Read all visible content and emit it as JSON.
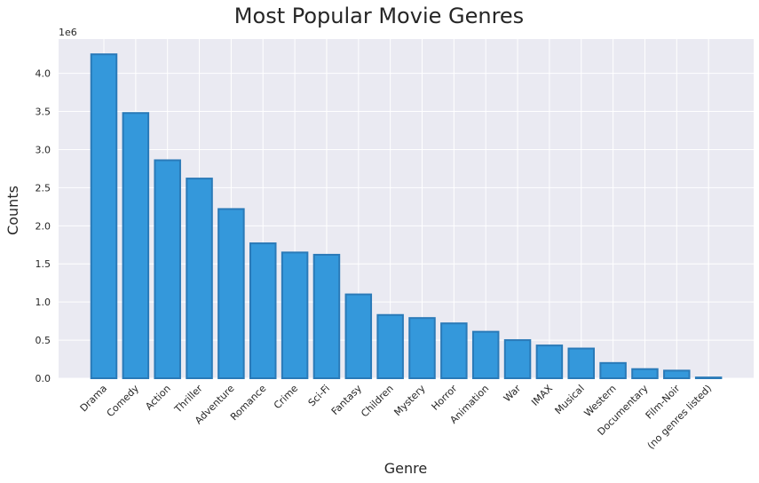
{
  "chart_data": {
    "type": "bar",
    "title": "Most Popular Movie Genres",
    "xlabel": "Genre",
    "ylabel": "Counts",
    "y_offset_label": "1e6",
    "ylim": [
      0,
      4.45
    ],
    "y_scale_factor": 1000000,
    "yticks": [
      "0.0",
      "0.5",
      "1.0",
      "1.5",
      "2.0",
      "2.5",
      "3.0",
      "3.5",
      "4.0"
    ],
    "categories": [
      "Drama",
      "Comedy",
      "Action",
      "Thriller",
      "Adventure",
      "Romance",
      "Crime",
      "Sci-Fi",
      "Fantasy",
      "Children",
      "Mystery",
      "Horror",
      "Animation",
      "War",
      "IMAX",
      "Musical",
      "Western",
      "Documentary",
      "Film-Noir",
      "(no genres listed)"
    ],
    "values": [
      4.25,
      3.48,
      2.86,
      2.62,
      2.22,
      1.77,
      1.65,
      1.62,
      1.1,
      0.83,
      0.79,
      0.72,
      0.61,
      0.5,
      0.43,
      0.39,
      0.2,
      0.12,
      0.1,
      0.01
    ],
    "grid": true,
    "colors": {
      "bar": "#3498db",
      "bar_edge": "#2a7ab8",
      "background": "#eaeaf2",
      "grid": "#ffffff"
    }
  }
}
